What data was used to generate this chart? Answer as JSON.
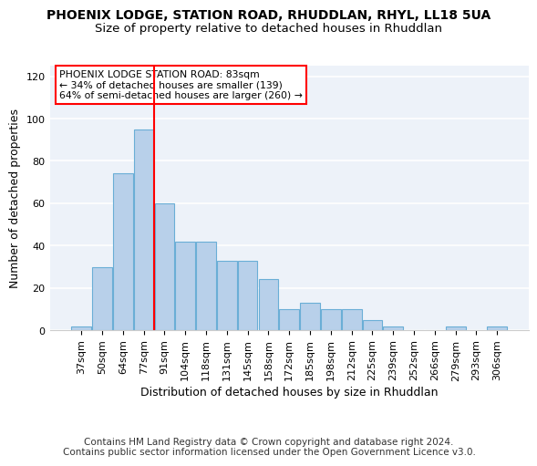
{
  "title1": "PHOENIX LODGE, STATION ROAD, RHUDDLAN, RHYL, LL18 5UA",
  "title2": "Size of property relative to detached houses in Rhuddlan",
  "xlabel": "Distribution of detached houses by size in Rhuddlan",
  "ylabel": "Number of detached properties",
  "footer1": "Contains HM Land Registry data © Crown copyright and database right 2024.",
  "footer2": "Contains public sector information licensed under the Open Government Licence v3.0.",
  "annotation_title": "PHOENIX LODGE STATION ROAD: 83sqm",
  "annotation_line2": "← 34% of detached houses are smaller (139)",
  "annotation_line3": "64% of semi-detached houses are larger (260) →",
  "bar_heights": [
    2,
    30,
    74,
    95,
    60,
    42,
    42,
    33,
    33,
    24,
    10,
    13,
    10,
    10,
    5,
    2,
    0,
    0,
    2,
    0,
    2
  ],
  "categories": [
    "37sqm",
    "50sqm",
    "64sqm",
    "77sqm",
    "91sqm",
    "104sqm",
    "118sqm",
    "131sqm",
    "145sqm",
    "158sqm",
    "172sqm",
    "185sqm",
    "198sqm",
    "212sqm",
    "225sqm",
    "239sqm",
    "252sqm",
    "266sqm",
    "279sqm",
    "293sqm",
    "306sqm"
  ],
  "bar_color": "#b8d0ea",
  "bar_edge_color": "#6aaed6",
  "red_line_x": 3.5,
  "ylim": [
    0,
    125
  ],
  "yticks": [
    0,
    20,
    40,
    60,
    80,
    100,
    120
  ],
  "bg_color": "#edf2f9",
  "title_fontsize": 10,
  "subtitle_fontsize": 9.5,
  "axis_label_fontsize": 9,
  "tick_fontsize": 8,
  "footer_fontsize": 7.5
}
